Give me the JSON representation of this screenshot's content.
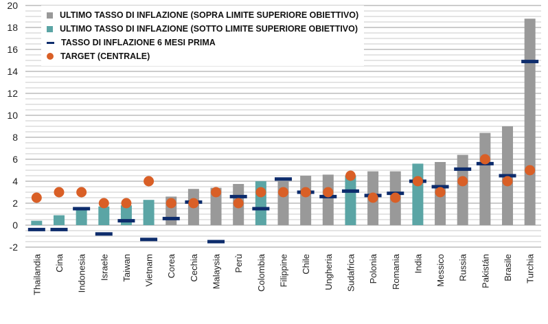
{
  "chart_data": {
    "type": "bar",
    "title": "",
    "xlabel": "",
    "ylabel": "",
    "ylim": [
      -2,
      20
    ],
    "yticks": [
      -2,
      0,
      2,
      4,
      6,
      8,
      10,
      12,
      14,
      16,
      18,
      20
    ],
    "categories": [
      "Thailandia",
      "Cina",
      "Indonesia",
      "Israele",
      "Taiwan",
      "Vietnam",
      "Corea",
      "Cechia",
      "Malaysia",
      "Perù",
      "Colombia",
      "Filippine",
      "Chile",
      "Ungheria",
      "Sudafrica",
      "Polonia",
      "Romania",
      "India",
      "Messico",
      "Russia",
      "Pakistán",
      "Brasile",
      "Turchia"
    ],
    "series": [
      {
        "name": "ULTIMO TASSO DI INFLAZIONE (SOPRA LIMITE SUPERIORE OBIETTIVO) / (SOTTO LIMITE SUPERIORE OBIETTIVO)",
        "kind": "bar",
        "values": [
          0.4,
          0.9,
          1.5,
          1.7,
          1.8,
          2.3,
          2.6,
          3.3,
          3.4,
          3.75,
          4.0,
          4.0,
          4.5,
          4.6,
          4.5,
          4.9,
          4.9,
          5.6,
          5.75,
          6.4,
          8.4,
          9.0,
          18.8
        ],
        "above_target": [
          false,
          false,
          false,
          false,
          false,
          false,
          true,
          true,
          true,
          true,
          false,
          true,
          true,
          true,
          false,
          true,
          true,
          false,
          true,
          true,
          true,
          true,
          true
        ]
      },
      {
        "name": "TASSO DI INFLAZIONE 6 MESI PRIMA",
        "kind": "dash",
        "values": [
          -0.4,
          -0.4,
          1.5,
          -0.8,
          0.4,
          -1.3,
          0.6,
          2.1,
          -1.5,
          2.6,
          1.5,
          4.2,
          3.0,
          2.6,
          3.1,
          2.7,
          2.9,
          4.0,
          3.5,
          5.1,
          5.6,
          4.5,
          14.9
        ]
      },
      {
        "name": "TARGET (CENTRALE)",
        "kind": "dot",
        "values": [
          2.5,
          3,
          3,
          2,
          2,
          4,
          2,
          2,
          3,
          2,
          3,
          3,
          3,
          3,
          4.5,
          2.5,
          2.5,
          4,
          3,
          4,
          6,
          4,
          5
        ]
      }
    ],
    "legend": [
      "ULTIMO TASSO DI INFLAZIONE (SOPRA LIMITE SUPERIORE OBIETTIVO)",
      "ULTIMO TASSO DI INFLAZIONE (SOTTO LIMITE SUPERIORE OBIETTIVO)",
      "TASSO DI INFLAZIONE 6 MESI PRIMA",
      "TARGET (CENTRALE)"
    ],
    "legend_position": "top-left",
    "grid": true
  },
  "colors": {
    "above": "#999999",
    "below": "#5ba5a5",
    "prev": "#0d2c6c",
    "target": "#d95f26"
  }
}
